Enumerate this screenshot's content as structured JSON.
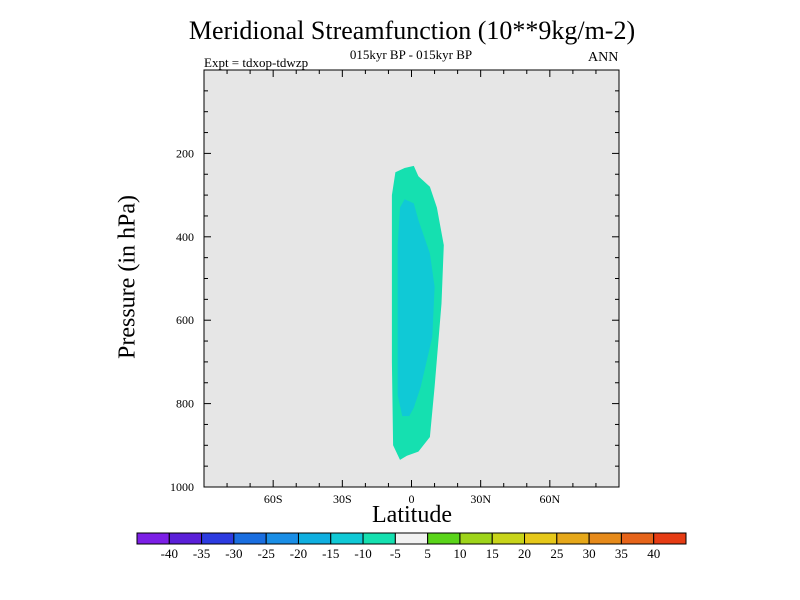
{
  "header": {
    "title": "Meridional Streamfunction (10**9kg/m-2)",
    "subtitle": "015kyr BP - 015kyr BP",
    "expt_label": "Expt = tdxop-tdwzp",
    "season": "ANN"
  },
  "colors": {
    "plot_background": "#e6e6e6",
    "outer_contour": "#15e0b0",
    "inner_contour": "#10c9d6"
  },
  "chart_data": {
    "type": "contour",
    "title": "Meridional Streamfunction (10**9kg/m-2)",
    "xlabel": "Latitude",
    "ylabel": "Pressure (in hPa)",
    "xlim": [
      -90,
      90
    ],
    "ylim": [
      1000,
      0
    ],
    "x_ticks": [
      {
        "value": -60,
        "label": "60S"
      },
      {
        "value": -30,
        "label": "30S"
      },
      {
        "value": 0,
        "label": "0"
      },
      {
        "value": 30,
        "label": "30N"
      },
      {
        "value": 60,
        "label": "60N"
      }
    ],
    "y_ticks": [
      {
        "value": 200,
        "label": "200"
      },
      {
        "value": 400,
        "label": "400"
      },
      {
        "value": 600,
        "label": "600"
      },
      {
        "value": 800,
        "label": "800"
      },
      {
        "value": 1000,
        "label": "1000"
      }
    ],
    "contours": [
      {
        "level_range": "-10 to -5",
        "color": "#15e0b0",
        "points": [
          [
            -5,
            935
          ],
          [
            -8,
            900
          ],
          [
            -8.5,
            700
          ],
          [
            -8.5,
            460
          ],
          [
            -8.5,
            300
          ],
          [
            -7,
            245
          ],
          [
            -3,
            235
          ],
          [
            1,
            230
          ],
          [
            3,
            255
          ],
          [
            8,
            280
          ],
          [
            11,
            330
          ],
          [
            14,
            420
          ],
          [
            13,
            560
          ],
          [
            10,
            760
          ],
          [
            8,
            880
          ],
          [
            3,
            915
          ],
          [
            -2,
            925
          ]
        ]
      },
      {
        "level_range": "-15 to -10",
        "color": "#10c9d6",
        "points": [
          [
            -4,
            830
          ],
          [
            -6,
            780
          ],
          [
            -6,
            600
          ],
          [
            -6,
            420
          ],
          [
            -5,
            330
          ],
          [
            -3,
            310
          ],
          [
            1,
            320
          ],
          [
            3,
            360
          ],
          [
            8,
            440
          ],
          [
            10,
            520
          ],
          [
            9,
            640
          ],
          [
            4,
            760
          ],
          [
            1,
            810
          ],
          [
            -1,
            830
          ]
        ]
      }
    ],
    "colorbar": {
      "labels": [
        "-40",
        "-35",
        "-30",
        "-25",
        "-20",
        "-15",
        "-10",
        "-5",
        "5",
        "10",
        "15",
        "20",
        "25",
        "30",
        "35",
        "40"
      ],
      "colors": [
        "#7c1fe6",
        "#5a1fd8",
        "#2c3be0",
        "#1a6ee0",
        "#1a8ee6",
        "#0fafe0",
        "#10c9d6",
        "#15e0b0",
        "#f2f2f2",
        "#5ad41a",
        "#9ed41a",
        "#c8d41a",
        "#e6c81a",
        "#e6a81a",
        "#e68a1a",
        "#e6641a",
        "#e63c14"
      ]
    }
  }
}
